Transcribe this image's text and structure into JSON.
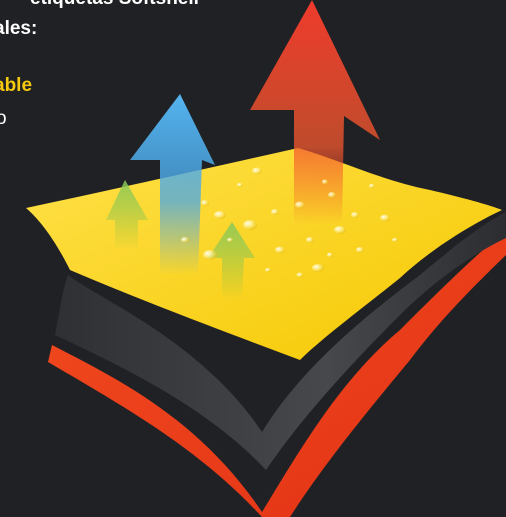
{
  "text": {
    "line1": "etiquetas Softshell",
    "line2": "ales:",
    "line3": "able",
    "line4": "o"
  },
  "colors": {
    "background": "#202124",
    "highlight": "#f6c90e",
    "yellow_layer": "#ffd400",
    "dark_layer": "#3a3b3e",
    "red_layer": "#f2401d",
    "red_arrow": "#ef3a2c",
    "blue_arrow": "#4aa8e8",
    "green_arrow": "#7bbf4a"
  },
  "illustration": {
    "name": "breathable-softshell-layers",
    "layers": [
      "yellow-layer",
      "dark-layer",
      "red-layer"
    ],
    "arrows": [
      "red-arrow",
      "blue-arrow",
      "green-arrow-left",
      "green-arrow-right"
    ],
    "icons": [
      "water-drop-icon"
    ]
  }
}
